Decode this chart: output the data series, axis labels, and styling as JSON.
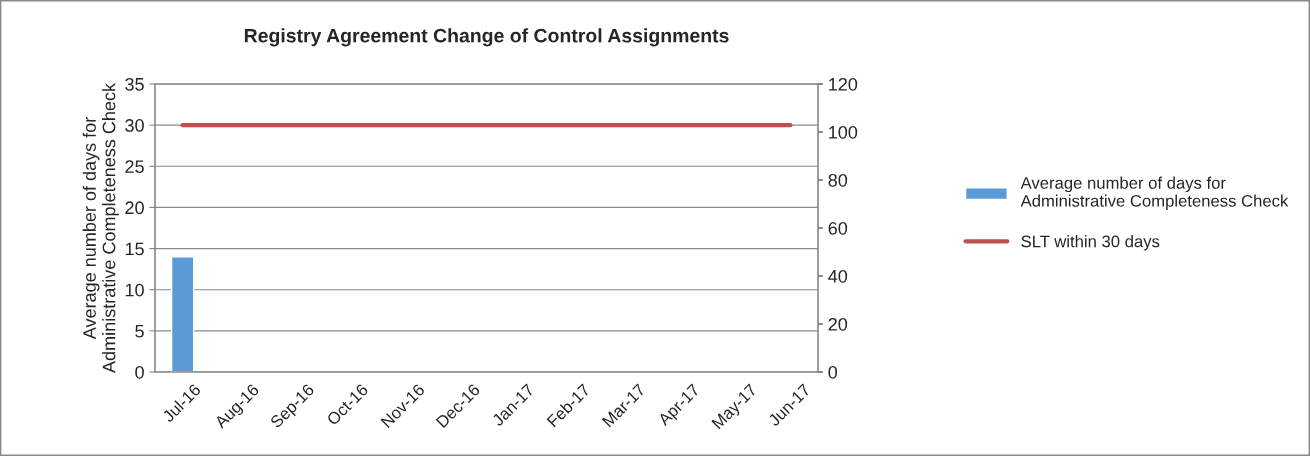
{
  "chart_data": {
    "type": "bar",
    "title": "Registry Agreement Change of Control Assignments",
    "categories": [
      "Jul-16",
      "Aug-16",
      "Sep-16",
      "Oct-16",
      "Nov-16",
      "Dec-16",
      "Jan-17",
      "Feb-17",
      "Mar-17",
      "Apr-17",
      "May-17",
      "Jun-17"
    ],
    "ylabel": "Average number of days for\nAdministrative Completeness Check",
    "series": [
      {
        "name": "Average number of days for\nAdministrative Completeness Check",
        "color": "#5b9bd5",
        "values": [
          14,
          null,
          null,
          null,
          null,
          null,
          null,
          null,
          null,
          null,
          null,
          null
        ]
      },
      {
        "name": "SLT within 30 days",
        "type": "line",
        "color": "#c0504d",
        "values": [
          30,
          30,
          30,
          30,
          30,
          30,
          30,
          30,
          30,
          30,
          30,
          30
        ]
      }
    ],
    "ylim": [
      0,
      35
    ],
    "yticks": [
      0,
      5,
      10,
      15,
      20,
      25,
      30,
      35
    ],
    "y2lim": [
      0,
      120
    ],
    "y2ticks": [
      0,
      20,
      40,
      60,
      80,
      100,
      120
    ],
    "grid": "y",
    "legend": "right"
  }
}
